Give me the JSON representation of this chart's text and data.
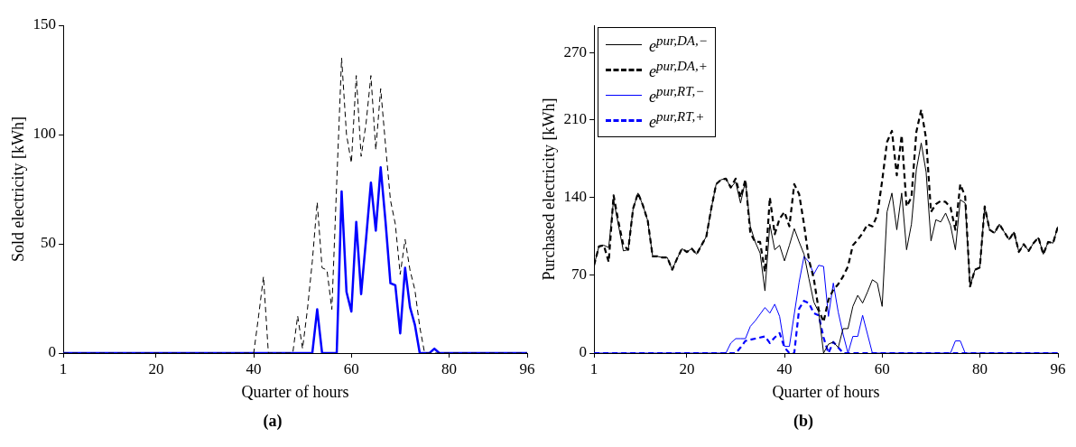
{
  "chart_data": [
    {
      "type": "line",
      "xlabel": "Quarter of hours",
      "ylabel": "Sold electricity [kWh]",
      "annotations": [
        "(a)"
      ],
      "x": [
        1,
        2,
        3,
        4,
        5,
        6,
        7,
        8,
        9,
        10,
        11,
        12,
        13,
        14,
        15,
        16,
        17,
        18,
        19,
        20,
        21,
        22,
        23,
        24,
        25,
        26,
        27,
        28,
        29,
        30,
        31,
        32,
        33,
        34,
        35,
        36,
        37,
        38,
        39,
        40,
        41,
        42,
        43,
        44,
        45,
        46,
        47,
        48,
        49,
        50,
        51,
        52,
        53,
        54,
        55,
        56,
        57,
        58,
        59,
        60,
        61,
        62,
        63,
        64,
        65,
        66,
        67,
        68,
        69,
        70,
        71,
        72,
        73,
        74,
        75,
        76,
        77,
        78,
        79,
        80,
        81,
        82,
        83,
        84,
        85,
        86,
        87,
        88,
        89,
        90,
        91,
        92,
        93,
        94,
        95,
        96
      ],
      "xlim": [
        1,
        96
      ],
      "xticks": [
        1,
        20,
        40,
        60,
        80,
        96
      ],
      "ylim": [
        0,
        150
      ],
      "yticks": [
        0,
        50,
        100,
        150
      ],
      "grid": false,
      "legend": false,
      "marker": "none",
      "series": [
        {
          "color": "#000000",
          "line_style": "dashed",
          "values": [
            0,
            0,
            0,
            0,
            0,
            0,
            0,
            0,
            0,
            0,
            0,
            0,
            0,
            0,
            0,
            0,
            0,
            0,
            0,
            0,
            0,
            0,
            0,
            0,
            0,
            0,
            0,
            0,
            0,
            0,
            0,
            0,
            0,
            0,
            0,
            0,
            0,
            0,
            0,
            0,
            17,
            35,
            0,
            0,
            0,
            0,
            0,
            0,
            17,
            2,
            20,
            42,
            69,
            39,
            38,
            20,
            78,
            135,
            100,
            87,
            127,
            90,
            105,
            127,
            93,
            121,
            95,
            70,
            59,
            36,
            52,
            38,
            29,
            12,
            0,
            0,
            0,
            0,
            0,
            0,
            0,
            0,
            0,
            0,
            0,
            0,
            0,
            0,
            0,
            0,
            0,
            0,
            0,
            0,
            0,
            0
          ]
        },
        {
          "color": "#0000ff",
          "line_style": "solid",
          "values": [
            0,
            0,
            0,
            0,
            0,
            0,
            0,
            0,
            0,
            0,
            0,
            0,
            0,
            0,
            0,
            0,
            0,
            0,
            0,
            0,
            0,
            0,
            0,
            0,
            0,
            0,
            0,
            0,
            0,
            0,
            0,
            0,
            0,
            0,
            0,
            0,
            0,
            0,
            0,
            0,
            0,
            0,
            0,
            0,
            0,
            0,
            0,
            0,
            0,
            0,
            0,
            0,
            20,
            0,
            0,
            0,
            0,
            74,
            28,
            19,
            60,
            27,
            52,
            78,
            56,
            85,
            60,
            32,
            31,
            9,
            39,
            21,
            13,
            0,
            0,
            0,
            2,
            0,
            0,
            0,
            0,
            0,
            0,
            0,
            0,
            0,
            0,
            0,
            0,
            0,
            0,
            0,
            0,
            0,
            0,
            0
          ]
        }
      ]
    },
    {
      "type": "line",
      "xlabel": "Quarter of hours",
      "ylabel": "Purchased electricity [kWh]",
      "annotations": [
        "(b)"
      ],
      "x": [
        1,
        2,
        3,
        4,
        5,
        6,
        7,
        8,
        9,
        10,
        11,
        12,
        13,
        14,
        15,
        16,
        17,
        18,
        19,
        20,
        21,
        22,
        23,
        24,
        25,
        26,
        27,
        28,
        29,
        30,
        31,
        32,
        33,
        34,
        35,
        36,
        37,
        38,
        39,
        40,
        41,
        42,
        43,
        44,
        45,
        46,
        47,
        48,
        49,
        50,
        51,
        52,
        53,
        54,
        55,
        56,
        57,
        58,
        59,
        60,
        61,
        62,
        63,
        64,
        65,
        66,
        67,
        68,
        69,
        70,
        71,
        72,
        73,
        74,
        75,
        76,
        77,
        78,
        79,
        80,
        81,
        82,
        83,
        84,
        85,
        86,
        87,
        88,
        89,
        90,
        91,
        92,
        93,
        94,
        95,
        96
      ],
      "xlim": [
        1,
        96
      ],
      "xticks": [
        1,
        20,
        40,
        60,
        80,
        96
      ],
      "ylim": [
        0,
        295
      ],
      "yticks": [
        0,
        70,
        140,
        210,
        270
      ],
      "grid": false,
      "legend": "top left",
      "marker": "none",
      "series": [
        {
          "name": "e$^{pur,DA,−}$",
          "color": "#000000",
          "line_style": "solid",
          "values": [
            79,
            96,
            97,
            95,
            138,
            115,
            92,
            93,
            130,
            144,
            133,
            119,
            87,
            87,
            86,
            86,
            75,
            85,
            94,
            91,
            94,
            89,
            97,
            105,
            130,
            152,
            156,
            157,
            149,
            154,
            135,
            155,
            114,
            100,
            90,
            56,
            116,
            93,
            97,
            83,
            97,
            112,
            100,
            89,
            67,
            46,
            37,
            0,
            8,
            10,
            5,
            22,
            22,
            42,
            52,
            45,
            55,
            66,
            63,
            42,
            127,
            144,
            111,
            144,
            93,
            116,
            165,
            189,
            163,
            101,
            120,
            118,
            126,
            115,
            93,
            138,
            135,
            60,
            75,
            77,
            132,
            111,
            108,
            116,
            109,
            102,
            109,
            91,
            98,
            92,
            99,
            104,
            89,
            100,
            99,
            114
          ]
        },
        {
          "name": "e$^{pur,DA,+}$",
          "color": "#000000",
          "line_style": "dashed",
          "values": [
            79,
            96,
            97,
            82,
            142,
            118,
            97,
            93,
            130,
            144,
            133,
            119,
            87,
            87,
            86,
            86,
            75,
            85,
            94,
            91,
            94,
            89,
            97,
            105,
            130,
            152,
            156,
            157,
            149,
            157,
            140,
            156,
            108,
            100,
            100,
            73,
            140,
            107,
            121,
            127,
            114,
            152,
            143,
            116,
            84,
            67,
            39,
            28,
            48,
            57,
            62,
            69,
            78,
            97,
            102,
            108,
            116,
            114,
            124,
            155,
            190,
            200,
            160,
            196,
            132,
            140,
            199,
            219,
            193,
            127,
            134,
            137,
            136,
            131,
            111,
            152,
            141,
            60,
            75,
            77,
            132,
            111,
            108,
            116,
            109,
            102,
            109,
            91,
            98,
            92,
            99,
            104,
            89,
            100,
            99,
            114
          ]
        },
        {
          "name": "e$^{pur,RT,−}$",
          "color": "#0000ff",
          "line_style": "solid",
          "values": [
            0,
            0,
            0,
            0,
            0,
            0,
            0,
            0,
            0,
            0,
            0,
            0,
            0,
            0,
            0,
            0,
            0,
            0,
            0,
            0,
            0,
            0,
            0,
            0,
            0,
            0,
            0,
            0,
            9,
            13,
            13,
            13,
            24,
            29,
            35,
            41,
            36,
            44,
            33,
            6,
            6,
            35,
            64,
            87,
            82,
            71,
            79,
            78,
            33,
            63,
            37,
            17,
            0,
            15,
            15,
            34,
            17,
            0,
            0,
            0,
            0,
            0,
            0,
            0,
            0,
            0,
            0,
            0,
            0,
            0,
            0,
            0,
            0,
            0,
            11,
            11,
            0,
            0,
            0,
            0,
            0,
            0,
            0,
            0,
            0,
            0,
            0,
            0,
            0,
            0,
            0,
            0,
            0,
            0,
            0,
            0
          ]
        },
        {
          "name": "e$^{pur,RT,+}$",
          "color": "#0000ff",
          "line_style": "dashed",
          "values": [
            0,
            0,
            0,
            0,
            0,
            0,
            0,
            0,
            0,
            0,
            0,
            0,
            0,
            0,
            0,
            0,
            0,
            0,
            0,
            0,
            0,
            0,
            0,
            0,
            0,
            0,
            0,
            0,
            0,
            0,
            5,
            11,
            12,
            13,
            14,
            15,
            9,
            14,
            18,
            5,
            0,
            0,
            40,
            47,
            45,
            36,
            34,
            14,
            0,
            10,
            5,
            0,
            0,
            0,
            0,
            0,
            0,
            0,
            0,
            0,
            0,
            0,
            0,
            0,
            0,
            0,
            0,
            0,
            0,
            0,
            0,
            0,
            0,
            0,
            0,
            0,
            0,
            0,
            0,
            0,
            0,
            0,
            0,
            0,
            0,
            0,
            0,
            0,
            0,
            0,
            0,
            0,
            0,
            0,
            0,
            0
          ]
        }
      ]
    }
  ]
}
